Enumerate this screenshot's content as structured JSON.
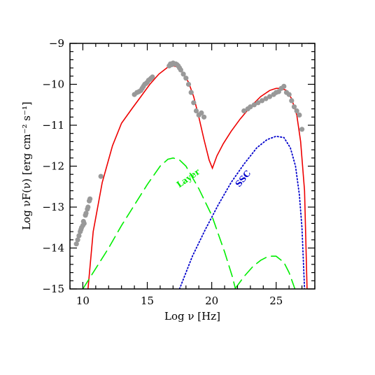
{
  "chart_data": {
    "type": "scatter",
    "xlabel": "Log ν [Hz]",
    "ylabel": "Log νF(ν) [erg cm⁻² s⁻¹]",
    "xlim": [
      9,
      28
    ],
    "ylim": [
      -15,
      -9
    ],
    "xticks": [
      10,
      15,
      20,
      25
    ],
    "yticks": [
      -9,
      -10,
      -11,
      -12,
      -13,
      -14,
      -15
    ],
    "grid": false,
    "annotations": [
      {
        "text": "Layer",
        "x": 18.3,
        "y": -12.35,
        "color": "#00ee00",
        "angle": -35
      },
      {
        "text": "SSC",
        "x": 22.6,
        "y": -12.35,
        "color": "#0000cc",
        "angle": -50
      }
    ],
    "data_points": {
      "color": "#999999",
      "x": [
        9.5,
        9.6,
        9.7,
        9.8,
        9.85,
        9.9,
        10.0,
        10.05,
        10.1,
        10.2,
        10.25,
        10.35,
        10.4,
        10.5,
        10.55,
        11.4,
        14.0,
        14.2,
        14.35,
        14.5,
        14.6,
        14.7,
        14.8,
        14.9,
        15.0,
        15.1,
        15.2,
        15.3,
        15.4,
        16.7,
        16.8,
        16.9,
        17.0,
        17.1,
        17.2,
        17.3,
        17.4,
        17.5,
        17.6,
        17.8,
        18.0,
        18.2,
        18.4,
        18.6,
        18.8,
        19.0,
        19.2,
        19.4,
        22.5,
        22.8,
        23.0,
        23.3,
        23.6,
        23.9,
        24.2,
        24.5,
        24.8,
        25.0,
        25.2,
        25.4,
        25.6,
        25.8,
        26.0,
        26.2,
        26.4,
        26.6,
        26.8,
        27.0
      ],
      "y": [
        -13.9,
        -13.8,
        -13.7,
        -13.6,
        -13.55,
        -13.5,
        -13.45,
        -13.35,
        -13.4,
        -13.2,
        -13.15,
        -13.05,
        -13.0,
        -12.85,
        -12.8,
        -12.25,
        -10.25,
        -10.2,
        -10.18,
        -10.15,
        -10.1,
        -10.05,
        -10.0,
        -9.98,
        -9.95,
        -9.9,
        -9.88,
        -9.85,
        -9.82,
        -9.55,
        -9.5,
        -9.52,
        -9.48,
        -9.5,
        -9.5,
        -9.52,
        -9.55,
        -9.6,
        -9.65,
        -9.75,
        -9.85,
        -10.0,
        -10.2,
        -10.45,
        -10.65,
        -10.75,
        -10.7,
        -10.8,
        -10.65,
        -10.6,
        -10.55,
        -10.5,
        -10.45,
        -10.4,
        -10.35,
        -10.3,
        -10.25,
        -10.2,
        -10.18,
        -10.1,
        -10.05,
        -10.2,
        -10.25,
        -10.4,
        -10.55,
        -10.65,
        -10.75,
        -11.1
      ]
    },
    "series": [
      {
        "style": "solid",
        "color": "#ee0000",
        "x": [
          10.4,
          10.8,
          11.5,
          12.3,
          13.0,
          13.8,
          14.5,
          15.2,
          15.9,
          16.6,
          17.0,
          17.3,
          17.7,
          18.2,
          18.6,
          19.0,
          19.4,
          19.8,
          20.05,
          20.4,
          20.9,
          21.5,
          22.2,
          23.0,
          23.8,
          24.5,
          25.0,
          25.4,
          25.8,
          26.2,
          26.6,
          26.9,
          27.2,
          27.4
        ],
        "y": [
          -15.0,
          -13.6,
          -12.4,
          -11.5,
          -10.95,
          -10.6,
          -10.3,
          -10.0,
          -9.75,
          -9.58,
          -9.55,
          -9.57,
          -9.7,
          -9.95,
          -10.3,
          -10.8,
          -11.35,
          -11.85,
          -12.05,
          -11.75,
          -11.45,
          -11.15,
          -10.85,
          -10.55,
          -10.3,
          -10.15,
          -10.1,
          -10.1,
          -10.15,
          -10.35,
          -10.75,
          -11.4,
          -12.6,
          -15.0
        ]
      },
      {
        "style": "dashed",
        "color": "#00ee00",
        "x": [
          10.0,
          11.0,
          12.0,
          13.0,
          14.0,
          15.0,
          16.0,
          16.6,
          17.0,
          17.5,
          18.0,
          19.0,
          20.0,
          21.0,
          21.6,
          22.0
        ],
        "y": [
          -15.0,
          -14.5,
          -14.0,
          -13.45,
          -12.95,
          -12.45,
          -12.0,
          -11.83,
          -11.8,
          -11.85,
          -12.0,
          -12.55,
          -13.2,
          -14.1,
          -14.7,
          -15.2
        ]
      },
      {
        "style": "dashed",
        "color": "#00ee00",
        "x": [
          21.8,
          22.5,
          23.2,
          23.8,
          24.4,
          25.0,
          25.6,
          26.0,
          26.4,
          26.7
        ],
        "y": [
          -15.0,
          -14.7,
          -14.45,
          -14.3,
          -14.2,
          -14.2,
          -14.35,
          -14.6,
          -14.95,
          -15.2
        ]
      },
      {
        "style": "dotted",
        "color": "#0000cc",
        "x": [
          17.5,
          18.5,
          19.5,
          20.5,
          21.5,
          22.5,
          23.5,
          24.3,
          25.0,
          25.6,
          26.1,
          26.5,
          26.8,
          27.0,
          27.2
        ],
        "y": [
          -15.0,
          -14.2,
          -13.55,
          -12.95,
          -12.4,
          -11.95,
          -11.55,
          -11.35,
          -11.27,
          -11.3,
          -11.55,
          -12.0,
          -12.7,
          -13.5,
          -15.0
        ]
      }
    ]
  }
}
